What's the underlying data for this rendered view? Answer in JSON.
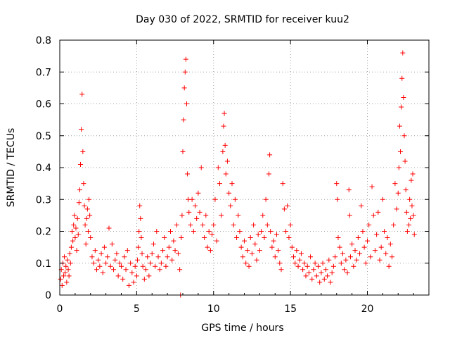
{
  "chart_data": {
    "type": "scatter",
    "title": "Day 030 of 2022, SRMTID for receiver kuu2",
    "xlabel": "GPS time / hours",
    "ylabel": "SRMTID / TECUs",
    "xlim": [
      0,
      24
    ],
    "ylim": [
      0,
      0.8
    ],
    "xticks": [
      0,
      5,
      10,
      15,
      20
    ],
    "xtick_labels": [
      "0",
      "5",
      "10",
      "15",
      "20"
    ],
    "yticks": [
      0,
      0.1,
      0.2,
      0.3,
      0.4,
      0.5,
      0.6,
      0.7,
      0.8
    ],
    "ytick_labels": [
      "0",
      "0.1",
      "0.2",
      "0.3",
      "0.4",
      "0.5",
      "0.6",
      "0.7",
      "0.8"
    ],
    "grid": true,
    "marker": "+",
    "color": "#ff0000",
    "series": [
      {
        "name": "SRMTID",
        "points": [
          [
            0.05,
            0.05
          ],
          [
            0.1,
            0.08
          ],
          [
            0.15,
            0.03
          ],
          [
            0.2,
            0.1
          ],
          [
            0.25,
            0.06
          ],
          [
            0.3,
            0.12
          ],
          [
            0.35,
            0.07
          ],
          [
            0.4,
            0.09
          ],
          [
            0.45,
            0.04
          ],
          [
            0.5,
            0.11
          ],
          [
            0.55,
            0.08
          ],
          [
            0.6,
            0.06
          ],
          [
            0.65,
            0.13
          ],
          [
            0.7,
            0.1
          ],
          [
            0.75,
            0.15
          ],
          [
            0.8,
            0.2
          ],
          [
            0.85,
            0.17
          ],
          [
            0.9,
            0.22
          ],
          [
            0.95,
            0.25
          ],
          [
            1.0,
            0.18
          ],
          [
            1.05,
            0.21
          ],
          [
            1.1,
            0.14
          ],
          [
            1.15,
            0.24
          ],
          [
            1.2,
            0.19
          ],
          [
            1.25,
            0.29
          ],
          [
            1.3,
            0.33
          ],
          [
            1.35,
            0.41
          ],
          [
            1.4,
            0.52
          ],
          [
            1.45,
            0.63
          ],
          [
            1.5,
            0.45
          ],
          [
            1.55,
            0.35
          ],
          [
            1.6,
            0.28
          ],
          [
            1.65,
            0.22
          ],
          [
            1.7,
            0.16
          ],
          [
            1.75,
            0.24
          ],
          [
            1.8,
            0.27
          ],
          [
            1.85,
            0.2
          ],
          [
            1.9,
            0.3
          ],
          [
            1.95,
            0.25
          ],
          [
            2.0,
            0.18
          ],
          [
            2.1,
            0.12
          ],
          [
            2.2,
            0.1
          ],
          [
            2.3,
            0.14
          ],
          [
            2.4,
            0.08
          ],
          [
            2.5,
            0.11
          ],
          [
            2.6,
            0.09
          ],
          [
            2.7,
            0.13
          ],
          [
            2.8,
            0.07
          ],
          [
            2.9,
            0.15
          ],
          [
            3.0,
            0.1
          ],
          [
            3.1,
            0.12
          ],
          [
            3.2,
            0.21
          ],
          [
            3.3,
            0.09
          ],
          [
            3.4,
            0.16
          ],
          [
            3.5,
            0.08
          ],
          [
            3.6,
            0.11
          ],
          [
            3.7,
            0.13
          ],
          [
            3.8,
            0.06
          ],
          [
            3.9,
            0.1
          ],
          [
            4.0,
            0.09
          ],
          [
            4.1,
            0.05
          ],
          [
            4.2,
            0.12
          ],
          [
            4.3,
            0.08
          ],
          [
            4.4,
            0.14
          ],
          [
            4.5,
            0.03
          ],
          [
            4.6,
            0.1
          ],
          [
            4.7,
            0.07
          ],
          [
            4.8,
            0.04
          ],
          [
            4.9,
            0.09
          ],
          [
            5.0,
            0.06
          ],
          [
            5.05,
            0.11
          ],
          [
            5.1,
            0.15
          ],
          [
            5.15,
            0.2
          ],
          [
            5.2,
            0.28
          ],
          [
            5.25,
            0.24
          ],
          [
            5.3,
            0.18
          ],
          [
            5.35,
            0.13
          ],
          [
            5.4,
            0.09
          ],
          [
            5.5,
            0.05
          ],
          [
            5.6,
            0.08
          ],
          [
            5.7,
            0.12
          ],
          [
            5.8,
            0.06
          ],
          [
            5.9,
            0.1
          ],
          [
            6.0,
            0.13
          ],
          [
            6.1,
            0.16
          ],
          [
            6.2,
            0.09
          ],
          [
            6.3,
            0.2
          ],
          [
            6.4,
            0.12
          ],
          [
            6.5,
            0.08
          ],
          [
            6.6,
            0.1
          ],
          [
            6.7,
            0.14
          ],
          [
            6.8,
            0.18
          ],
          [
            6.9,
            0.09
          ],
          [
            7.0,
            0.12
          ],
          [
            7.1,
            0.15
          ],
          [
            7.2,
            0.2
          ],
          [
            7.3,
            0.11
          ],
          [
            7.4,
            0.17
          ],
          [
            7.5,
            0.14
          ],
          [
            7.6,
            0.22
          ],
          [
            7.7,
            0.13
          ],
          [
            7.8,
            0.08
          ],
          [
            7.85,
            0.0
          ],
          [
            7.9,
            0.18
          ],
          [
            7.95,
            0.25
          ],
          [
            8.0,
            0.45
          ],
          [
            8.05,
            0.55
          ],
          [
            8.1,
            0.65
          ],
          [
            8.15,
            0.7
          ],
          [
            8.2,
            0.74
          ],
          [
            8.25,
            0.6
          ],
          [
            8.3,
            0.38
          ],
          [
            8.35,
            0.3
          ],
          [
            8.4,
            0.26
          ],
          [
            8.5,
            0.22
          ],
          [
            8.6,
            0.3
          ],
          [
            8.7,
            0.2
          ],
          [
            8.8,
            0.28
          ],
          [
            8.9,
            0.24
          ],
          [
            9.0,
            0.32
          ],
          [
            9.1,
            0.26
          ],
          [
            9.2,
            0.4
          ],
          [
            9.3,
            0.22
          ],
          [
            9.4,
            0.18
          ],
          [
            9.5,
            0.25
          ],
          [
            9.6,
            0.15
          ],
          [
            9.7,
            0.2
          ],
          [
            9.8,
            0.14
          ],
          [
            9.9,
            0.19
          ],
          [
            10.0,
            0.22
          ],
          [
            10.1,
            0.3
          ],
          [
            10.2,
            0.17
          ],
          [
            10.3,
            0.4
          ],
          [
            10.4,
            0.35
          ],
          [
            10.5,
            0.25
          ],
          [
            10.6,
            0.45
          ],
          [
            10.65,
            0.53
          ],
          [
            10.7,
            0.57
          ],
          [
            10.75,
            0.47
          ],
          [
            10.8,
            0.38
          ],
          [
            10.9,
            0.42
          ],
          [
            11.0,
            0.32
          ],
          [
            11.1,
            0.28
          ],
          [
            11.2,
            0.35
          ],
          [
            11.3,
            0.22
          ],
          [
            11.4,
            0.3
          ],
          [
            11.5,
            0.18
          ],
          [
            11.6,
            0.25
          ],
          [
            11.7,
            0.2
          ],
          [
            11.8,
            0.15
          ],
          [
            11.9,
            0.12
          ],
          [
            12.0,
            0.17
          ],
          [
            12.1,
            0.1
          ],
          [
            12.2,
            0.14
          ],
          [
            12.3,
            0.09
          ],
          [
            12.4,
            0.18
          ],
          [
            12.5,
            0.13
          ],
          [
            12.6,
            0.22
          ],
          [
            12.7,
            0.16
          ],
          [
            12.8,
            0.11
          ],
          [
            12.9,
            0.19
          ],
          [
            13.0,
            0.14
          ],
          [
            13.1,
            0.2
          ],
          [
            13.2,
            0.25
          ],
          [
            13.3,
            0.18
          ],
          [
            13.4,
            0.3
          ],
          [
            13.5,
            0.22
          ],
          [
            13.6,
            0.38
          ],
          [
            13.65,
            0.44
          ],
          [
            13.7,
            0.2
          ],
          [
            13.8,
            0.15
          ],
          [
            13.9,
            0.17
          ],
          [
            14.0,
            0.12
          ],
          [
            14.1,
            0.19
          ],
          [
            14.2,
            0.14
          ],
          [
            14.3,
            0.1
          ],
          [
            14.4,
            0.08
          ],
          [
            14.5,
            0.35
          ],
          [
            14.6,
            0.27
          ],
          [
            14.7,
            0.2
          ],
          [
            14.8,
            0.28
          ],
          [
            14.9,
            0.18
          ],
          [
            15.0,
            0.22
          ],
          [
            15.1,
            0.15
          ],
          [
            15.2,
            0.12
          ],
          [
            15.3,
            0.1
          ],
          [
            15.4,
            0.14
          ],
          [
            15.5,
            0.09
          ],
          [
            15.6,
            0.11
          ],
          [
            15.7,
            0.13
          ],
          [
            15.8,
            0.08
          ],
          [
            15.9,
            0.1
          ],
          [
            16.0,
            0.06
          ],
          [
            16.1,
            0.09
          ],
          [
            16.2,
            0.07
          ],
          [
            16.3,
            0.12
          ],
          [
            16.4,
            0.05
          ],
          [
            16.5,
            0.08
          ],
          [
            16.6,
            0.1
          ],
          [
            16.7,
            0.06
          ],
          [
            16.8,
            0.09
          ],
          [
            16.9,
            0.04
          ],
          [
            17.0,
            0.07
          ],
          [
            17.1,
            0.1
          ],
          [
            17.2,
            0.05
          ],
          [
            17.3,
            0.08
          ],
          [
            17.4,
            0.06
          ],
          [
            17.5,
            0.11
          ],
          [
            17.6,
            0.04
          ],
          [
            17.7,
            0.07
          ],
          [
            17.8,
            0.09
          ],
          [
            17.9,
            0.12
          ],
          [
            18.0,
            0.35
          ],
          [
            18.05,
            0.3
          ],
          [
            18.1,
            0.18
          ],
          [
            18.2,
            0.15
          ],
          [
            18.3,
            0.1
          ],
          [
            18.4,
            0.13
          ],
          [
            18.5,
            0.08
          ],
          [
            18.6,
            0.11
          ],
          [
            18.7,
            0.07
          ],
          [
            18.8,
            0.33
          ],
          [
            18.85,
            0.25
          ],
          [
            18.9,
            0.12
          ],
          [
            19.0,
            0.16
          ],
          [
            19.1,
            0.09
          ],
          [
            19.2,
            0.14
          ],
          [
            19.3,
            0.11
          ],
          [
            19.4,
            0.18
          ],
          [
            19.5,
            0.13
          ],
          [
            19.6,
            0.28
          ],
          [
            19.7,
            0.2
          ],
          [
            19.8,
            0.15
          ],
          [
            19.9,
            0.1
          ],
          [
            20.0,
            0.17
          ],
          [
            20.1,
            0.22
          ],
          [
            20.2,
            0.12
          ],
          [
            20.3,
            0.34
          ],
          [
            20.4,
            0.25
          ],
          [
            20.5,
            0.14
          ],
          [
            20.6,
            0.19
          ],
          [
            20.7,
            0.26
          ],
          [
            20.8,
            0.11
          ],
          [
            20.9,
            0.15
          ],
          [
            21.0,
            0.3
          ],
          [
            21.1,
            0.2
          ],
          [
            21.2,
            0.13
          ],
          [
            21.3,
            0.18
          ],
          [
            21.4,
            0.09
          ],
          [
            21.5,
            0.16
          ],
          [
            21.6,
            0.12
          ],
          [
            21.7,
            0.22
          ],
          [
            21.8,
            0.35
          ],
          [
            21.9,
            0.27
          ],
          [
            22.0,
            0.32
          ],
          [
            22.05,
            0.4
          ],
          [
            22.1,
            0.53
          ],
          [
            22.15,
            0.45
          ],
          [
            22.2,
            0.59
          ],
          [
            22.25,
            0.68
          ],
          [
            22.3,
            0.76
          ],
          [
            22.35,
            0.62
          ],
          [
            22.4,
            0.5
          ],
          [
            22.45,
            0.42
          ],
          [
            22.5,
            0.33
          ],
          [
            22.55,
            0.26
          ],
          [
            22.6,
            0.2
          ],
          [
            22.7,
            0.22
          ],
          [
            22.75,
            0.3
          ],
          [
            22.8,
            0.24
          ],
          [
            22.85,
            0.36
          ],
          [
            22.9,
            0.28
          ],
          [
            22.95,
            0.38
          ],
          [
            23.0,
            0.25
          ],
          [
            23.05,
            0.19
          ]
        ]
      }
    ]
  }
}
